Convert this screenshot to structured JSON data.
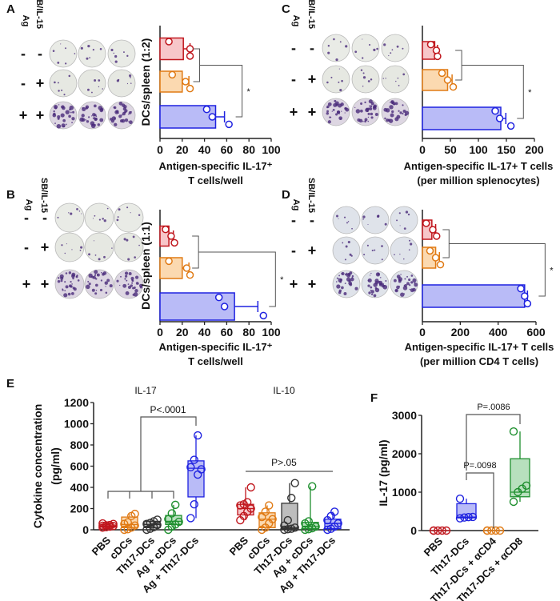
{
  "panel_letters": [
    "A",
    "B",
    "C",
    "D",
    "E",
    "F"
  ],
  "colors": {
    "red": "#c0161d",
    "red_fill": "#f7c6c9",
    "orange": "#e07a14",
    "orange_fill": "#fbd9b0",
    "blue": "#1f22e0",
    "blue_fill": "#b9bbf7",
    "gray": "#333333",
    "gray_fill": "#bdbdbd",
    "green": "#1e8f2e",
    "green_fill": "#b7e0bd",
    "well_dot": "#4a2a7a"
  },
  "well_headers": {
    "ag": "Ag",
    "sb": "SB/IL-15"
  },
  "well_rows": [
    {
      "ag": "-",
      "sb": "-"
    },
    {
      "ag": "-",
      "sb": "+"
    },
    {
      "ag": "+",
      "sb": "+"
    }
  ],
  "chart_data": [
    {
      "id": "A",
      "type": "bar",
      "orientation": "horizontal",
      "ylabel": "DCs/spleen (1:2)",
      "xlabel": [
        "Antigen-specific IL-17⁺",
        "T cells/well"
      ],
      "xlim": [
        0,
        100
      ],
      "xticks": [
        "0",
        "20",
        "40",
        "60",
        "80",
        "100"
      ],
      "xtick_values": [
        0,
        20,
        40,
        60,
        80,
        100
      ],
      "bars": [
        {
          "value": 21,
          "err": 6,
          "points": [
            8,
            27,
            27
          ],
          "color": "red"
        },
        {
          "value": 20,
          "err": 6,
          "points": [
            11,
            23,
            27
          ],
          "color": "orange"
        },
        {
          "value": 50,
          "err": 8,
          "points": [
            42,
            47,
            62
          ],
          "color": "blue"
        }
      ],
      "significance": "*"
    },
    {
      "id": "B",
      "type": "bar",
      "orientation": "horizontal",
      "ylabel": "DCs/spleen (1:1)",
      "xlabel": [
        "Antigen-specific IL-17⁺",
        "T cells/well"
      ],
      "xlim": [
        0,
        100
      ],
      "xticks": [
        "0",
        "20",
        "40",
        "60",
        "80",
        "100"
      ],
      "xtick_values": [
        0,
        20,
        40,
        60,
        80,
        100
      ],
      "bars": [
        {
          "value": 8,
          "err": 4,
          "points": [
            5,
            10,
            13
          ],
          "color": "red"
        },
        {
          "value": 20,
          "err": 6,
          "points": [
            8,
            24,
            27
          ],
          "color": "orange"
        },
        {
          "value": 67,
          "err": 21,
          "points": [
            53,
            58,
            93
          ],
          "color": "blue"
        }
      ],
      "significance": "*"
    },
    {
      "id": "C",
      "type": "bar",
      "orientation": "horizontal",
      "ylabel": "",
      "xlabel": [
        "Antigen-specific IL-17+ T cells",
        "(per million splenocytes)"
      ],
      "xlim": [
        0,
        200
      ],
      "xticks": [
        "0",
        "50",
        "100",
        "150",
        "200"
      ],
      "xtick_values": [
        0,
        50,
        100,
        150,
        200
      ],
      "bars": [
        {
          "value": 22,
          "err": 5,
          "points": [
            15,
            25,
            27
          ],
          "color": "red"
        },
        {
          "value": 45,
          "err": 8,
          "points": [
            35,
            45,
            55
          ],
          "color": "orange"
        },
        {
          "value": 140,
          "err": 9,
          "points": [
            130,
            138,
            158
          ],
          "color": "blue"
        }
      ],
      "significance": "*"
    },
    {
      "id": "D",
      "type": "bar",
      "orientation": "horizontal",
      "ylabel": "",
      "xlabel": [
        "Antigen-specific IL-17+ T cells",
        "(per million CD4 T cells)"
      ],
      "xlim": [
        0,
        600
      ],
      "xticks": [
        "0",
        "200",
        "400",
        "600"
      ],
      "xtick_values": [
        0,
        200,
        400,
        600
      ],
      "bars": [
        {
          "value": 50,
          "err": 20,
          "points": [
            20,
            55,
            75
          ],
          "color": "red"
        },
        {
          "value": 70,
          "err": 20,
          "points": [
            40,
            70,
            95
          ],
          "color": "orange"
        },
        {
          "value": 540,
          "err": 15,
          "points": [
            520,
            540,
            555
          ],
          "color": "blue"
        }
      ],
      "significance": "*"
    },
    {
      "id": "E",
      "type": "box",
      "ylabel": [
        "Cytokine concentration",
        "(pg/ml)"
      ],
      "ylim": [
        0,
        1200
      ],
      "yticks": [
        "0",
        "200",
        "400",
        "600",
        "800",
        "1000",
        "1200"
      ],
      "ytick_values": [
        0,
        200,
        400,
        600,
        800,
        1000,
        1200
      ],
      "groups": [
        {
          "title": "IL-17",
          "annotation": "P<.0001",
          "categories": [
            "PBS",
            "cDCs",
            "Th17-DCs",
            "Ag + cDCs",
            "Ag + Th17-DCs"
          ],
          "boxes": [
            {
              "color": "red",
              "stats": [
                20,
                25,
                35,
                45,
                60
              ],
              "points": [
                20,
                25,
                30,
                35,
                38,
                42,
                45,
                55,
                60
              ]
            },
            {
              "color": "orange",
              "stats": [
                0,
                20,
                50,
                120,
                150
              ],
              "points": [
                0,
                5,
                20,
                40,
                55,
                70,
                130,
                150
              ]
            },
            {
              "color": "gray",
              "stats": [
                0,
                20,
                50,
                80,
                95
              ],
              "points": [
                0,
                10,
                25,
                45,
                55,
                65,
                80,
                95
              ]
            },
            {
              "color": "green",
              "stats": [
                0,
                50,
                80,
                135,
                235
              ],
              "points": [
                0,
                30,
                50,
                75,
                100,
                155,
                235
              ]
            },
            {
              "color": "blue",
              "stats": [
                110,
                310,
                580,
                650,
                890
              ],
              "points": [
                110,
                240,
                520,
                570,
                590,
                660,
                890
              ]
            }
          ]
        },
        {
          "title": "IL-10",
          "annotation": "P>.05",
          "categories": [
            "PBS",
            "cDCs",
            "Th17-DCs",
            "Ag + cDCs",
            "Ag + Th17-DCs"
          ],
          "boxes": [
            {
              "color": "red",
              "stats": [
                90,
                140,
                200,
                240,
                400
              ],
              "points": [
                90,
                130,
                170,
                200,
                230,
                240,
                260,
                400
              ]
            },
            {
              "color": "orange",
              "stats": [
                0,
                20,
                100,
                160,
                230
              ],
              "points": [
                0,
                20,
                60,
                100,
                120,
                170,
                230
              ]
            },
            {
              "color": "gray",
              "stats": [
                0,
                10,
                20,
                250,
                440
              ],
              "points": [
                0,
                5,
                10,
                20,
                40,
                90,
                300,
                440
              ]
            },
            {
              "color": "green",
              "stats": [
                0,
                10,
                30,
                70,
                410
              ],
              "points": [
                0,
                5,
                15,
                30,
                60,
                80,
                410
              ]
            },
            {
              "color": "blue",
              "stats": [
                0,
                10,
                60,
                100,
                170
              ],
              "points": [
                0,
                10,
                30,
                60,
                90,
                130,
                170
              ]
            }
          ]
        }
      ]
    },
    {
      "id": "F",
      "type": "box",
      "ylabel": [
        "IL-17 (pg/ml)"
      ],
      "ylim": [
        0,
        3000
      ],
      "yticks": [
        "0",
        "1000",
        "2000",
        "3000"
      ],
      "ytick_values": [
        0,
        1000,
        2000,
        3000
      ],
      "categories": [
        "PBS",
        "Th17-DCs",
        "Th17-DCs + αCD4",
        "Th17-DCs + αCD8"
      ],
      "boxes": [
        {
          "color": "red",
          "stats": [
            0,
            0,
            0,
            0,
            0
          ],
          "points": [
            0,
            0,
            0,
            0,
            0
          ]
        },
        {
          "color": "blue",
          "stats": [
            320,
            330,
            350,
            700,
            830
          ],
          "points": [
            320,
            340,
            350,
            355,
            830
          ]
        },
        {
          "color": "orange",
          "stats": [
            0,
            0,
            0,
            0,
            0
          ],
          "points": [
            0,
            0,
            0,
            0,
            0
          ]
        },
        {
          "color": "green",
          "stats": [
            750,
            880,
            1000,
            1870,
            2580
          ],
          "points": [
            750,
            1000,
            1090,
            1170,
            2580
          ]
        }
      ],
      "annotations": [
        "P=.0098",
        "P=.0086"
      ]
    }
  ]
}
